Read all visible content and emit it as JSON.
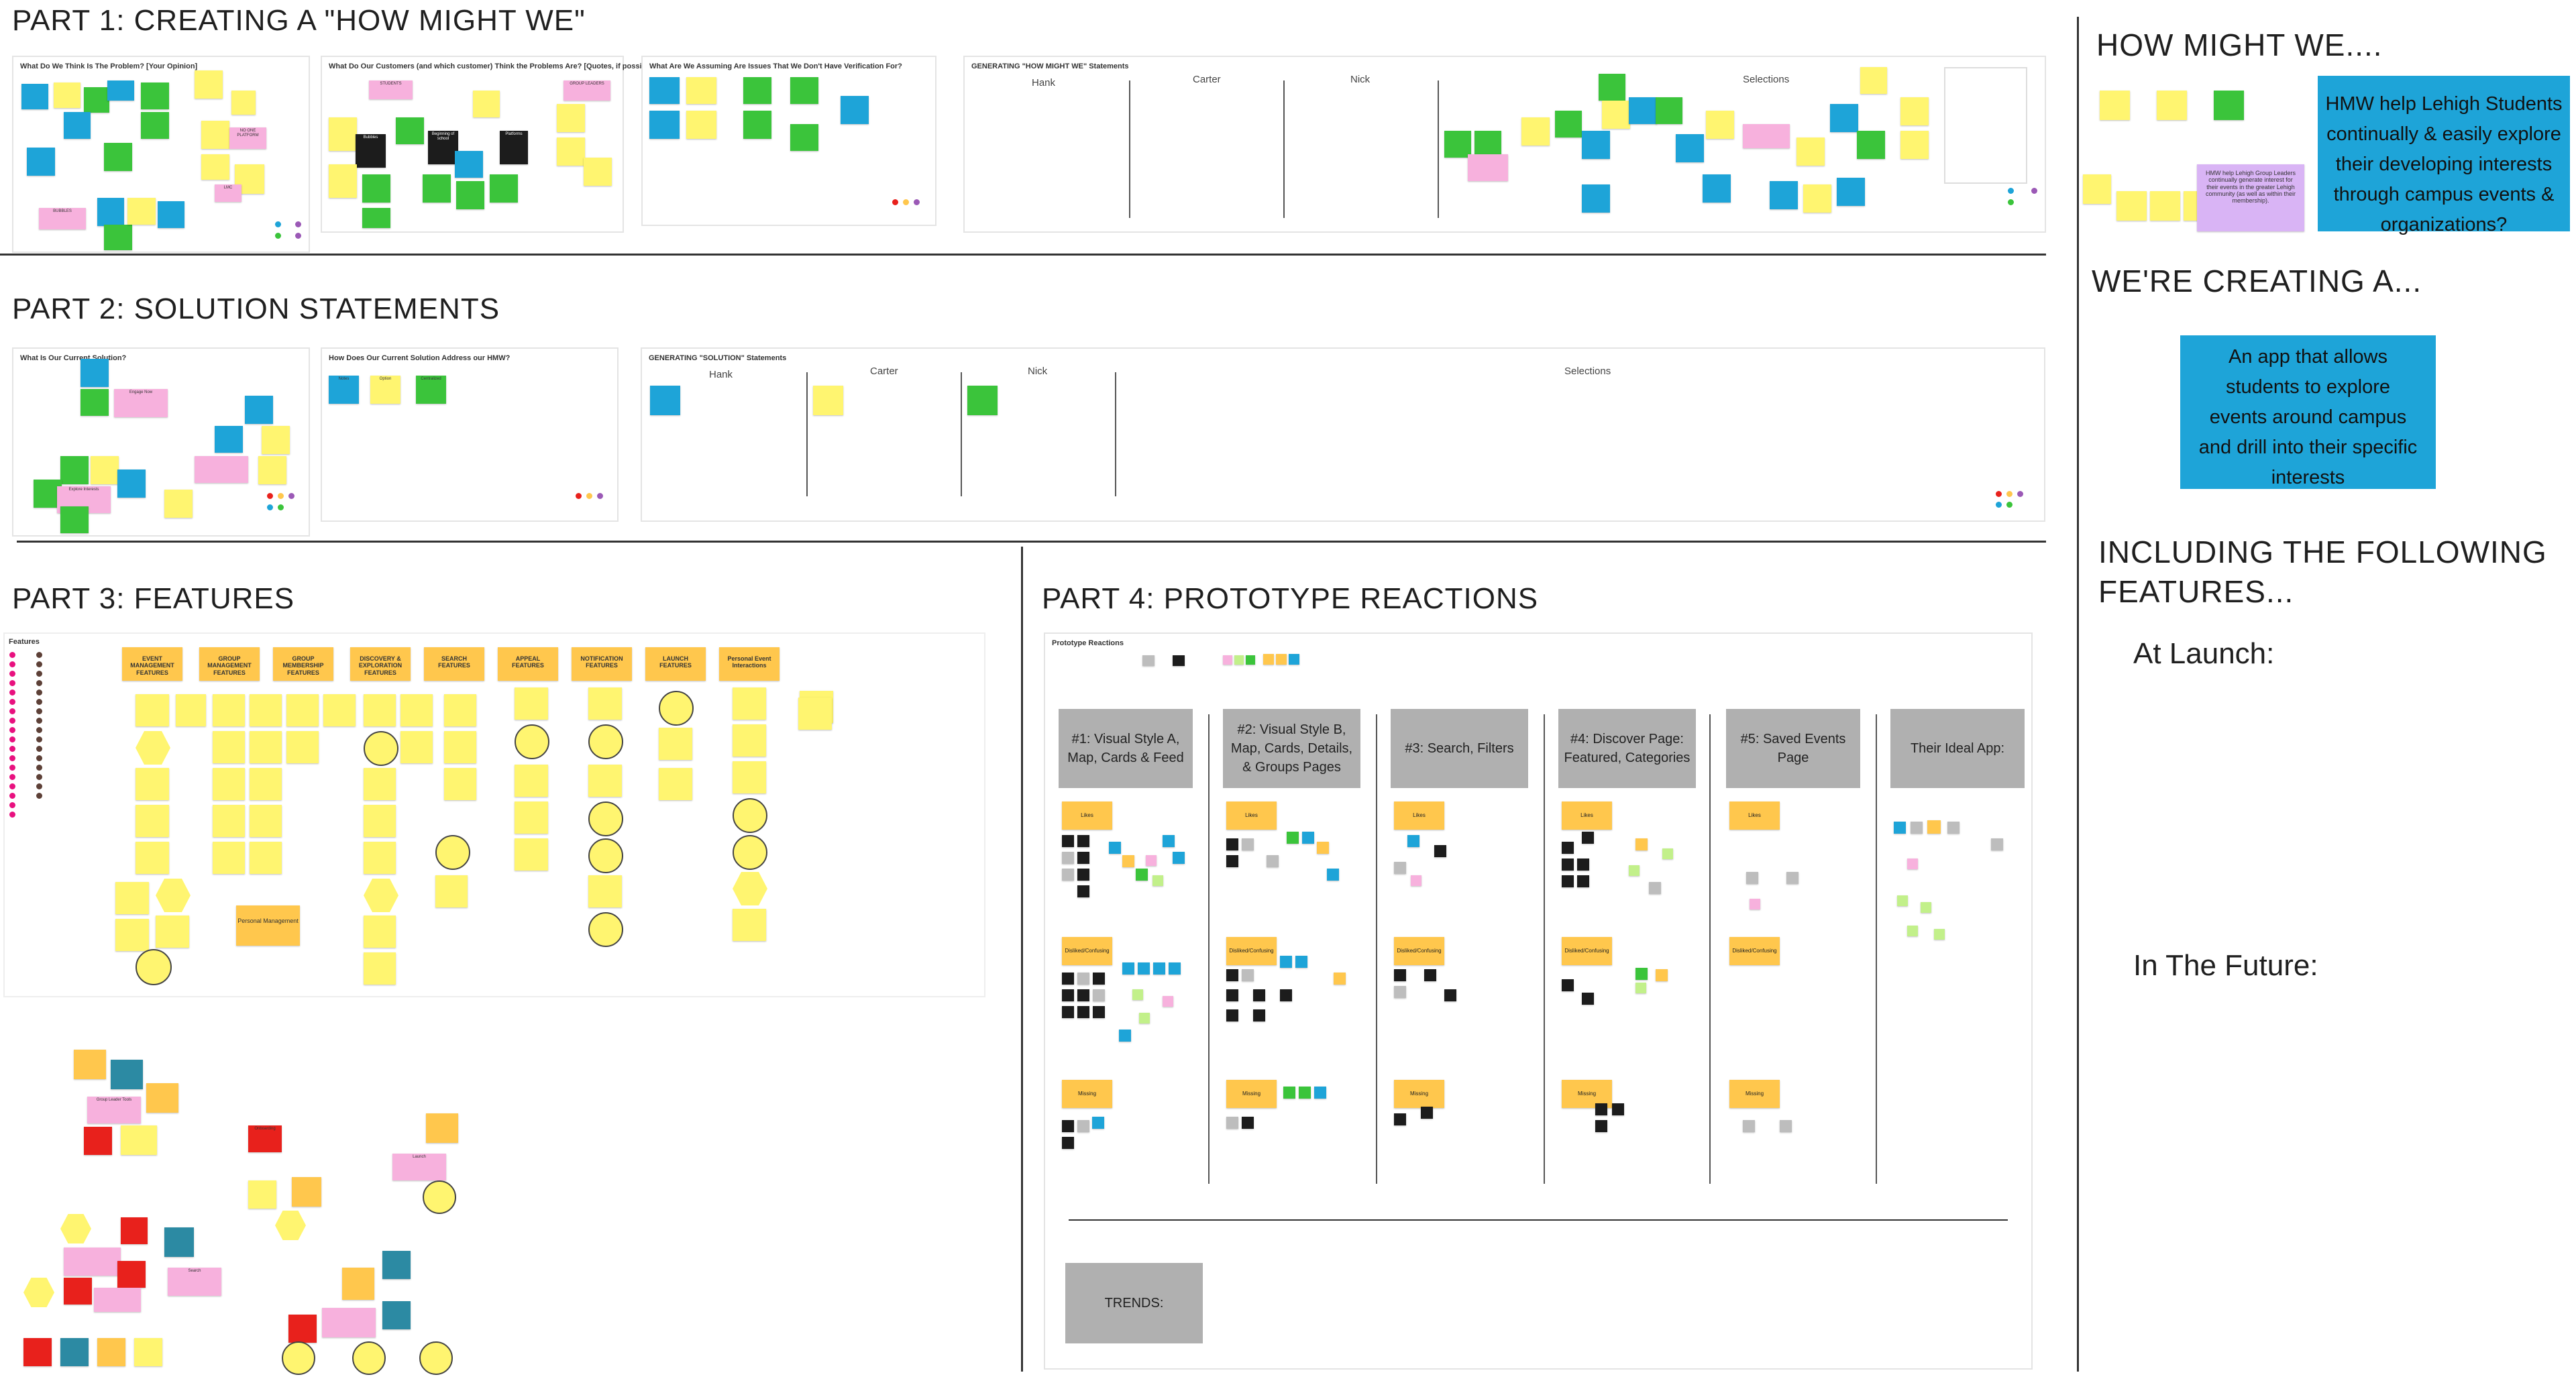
{
  "part1": {
    "title": "PART 1: CREATING A \"HOW MIGHT WE\"",
    "frame1_title": "What Do We Think Is The Problem?  [Your Opinion]",
    "frame2_title": "What Do Our Customers (and which customer) Think the Problems Are? [Quotes, if possible]",
    "frame3_title": "What Are We Assuming Are Issues That We Don't Have Verification For?",
    "frame4_title": "GENERATING \"HOW MIGHT WE\" Statements",
    "columns": [
      "Hank",
      "Carter",
      "Nick",
      "Selections"
    ],
    "notes": {
      "bubbles": "BUBBLES",
      "no_one_platform": "NO ONE PLATFORM",
      "lmc": "LMC",
      "students": "STUDENTS",
      "group_leaders": "GROUP LEADERS",
      "bubbles2": "Bubbles",
      "beginning": "Beginning of school",
      "platforms": "Platforms"
    }
  },
  "part2": {
    "title": "PART 2: SOLUTION STATEMENTS",
    "frame1_title": "What Is Our Current Solution?",
    "frame2_title": "How Does Our Current Solution Address our HMW?",
    "frame3_title": "GENERATING \"SOLUTION\" Statements",
    "columns": [
      "Hank",
      "Carter",
      "Nick",
      "Selections"
    ],
    "notes": {
      "engage_now": "Engage Now",
      "explore_interests": "Explore Interests",
      "notes_a": "Notes",
      "notes_b": "Option",
      "notes_c": "Centralized"
    }
  },
  "part3": {
    "title": "PART 3: FEATURES",
    "frame_title": "Features",
    "categories": [
      "EVENT MANAGEMENT FEATURES",
      "GROUP MANAGEMENT FEATURES",
      "GROUP MEMBERSHIP FEATURES",
      "DISCOVERY & EXPLORATION FEATURES",
      "SEARCH FEATURES",
      "APPEAL FEATURES",
      "NOTIFICATION FEATURES",
      "LAUNCH FEATURES",
      "Personal Event Interactions"
    ],
    "notes": {
      "personal_management": "Personal Management",
      "onboarding": "Onboarding",
      "launch": "Launch",
      "group_leader_tools": "Group Leader Tools",
      "search": "Search"
    }
  },
  "part4": {
    "title": "PART 4: PROTOTYPE REACTIONS",
    "frame_title": "Prototype Reactions",
    "columns": [
      "#1: Visual Style A, Map, Cards & Feed",
      "#2: Visual Style B, Map, Cards, Details, & Groups Pages",
      "#3: Search, Filters",
      "#4: Discover Page: Featured, Categories",
      "#5: Saved Events Page",
      "Their Ideal App:"
    ],
    "row_labels": [
      "Likes",
      "Disliked/Confusing",
      "Missing"
    ],
    "trends": "TRENDS:"
  },
  "sidebar": {
    "hmw_title": "HOW MIGHT WE....",
    "hmw_statement": "HMW help Lehigh Students continually & easily explore their developing interests through campus events & organizations?",
    "hmw_alt": "HMW help Lehigh Group Leaders continually generate interest for their events in the greater Lehigh community (as well as within their membership).",
    "creating_title": "WE'RE CREATING A...",
    "creating_statement": "An app that allows students to explore events around campus and drill into their specific interests",
    "features_title": "INCLUDING THE FOLLOWING FEATURES...",
    "at_launch": "At Launch:",
    "future": "In The Future:"
  },
  "colors": {
    "yellow": "#fff570",
    "orange": "#ffc74d",
    "green": "#3bc43b",
    "blue": "#1ea4d8",
    "pink": "#f7b1dd",
    "lavender": "#d9b4f5",
    "black": "#1c1c1c",
    "gray": "#b0b0b0",
    "red": "#e8211c",
    "teal": "#2c8aa3"
  }
}
